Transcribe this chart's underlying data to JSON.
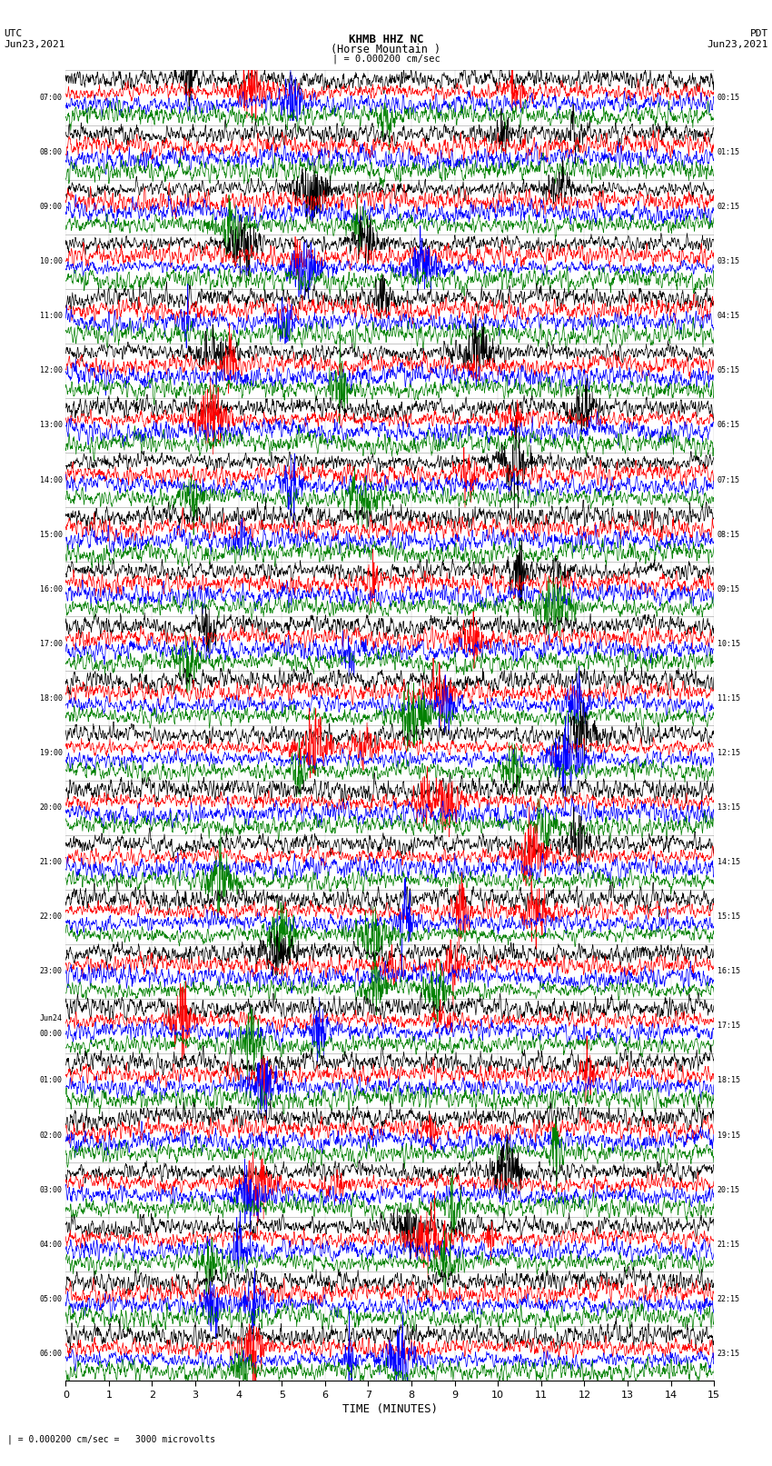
{
  "title_line1": "KHMB HHZ NC",
  "title_line2": "(Horse Mountain )",
  "title_scale": "| = 0.000200 cm/sec",
  "label_left_top": "UTC",
  "label_left_date": "Jun23,2021",
  "label_right_top": "PDT",
  "label_right_date": "Jun23,2021",
  "xlabel": "TIME (MINUTES)",
  "bottom_note": "| = 0.000200 cm/sec =   3000 microvolts",
  "left_times": [
    "07:00",
    "08:00",
    "09:00",
    "10:00",
    "11:00",
    "12:00",
    "13:00",
    "14:00",
    "15:00",
    "16:00",
    "17:00",
    "18:00",
    "19:00",
    "20:00",
    "21:00",
    "22:00",
    "23:00",
    "Jun24\n00:00",
    "01:00",
    "02:00",
    "03:00",
    "04:00",
    "05:00",
    "06:00"
  ],
  "right_times": [
    "00:15",
    "01:15",
    "02:15",
    "03:15",
    "04:15",
    "05:15",
    "06:15",
    "07:15",
    "08:15",
    "09:15",
    "10:15",
    "11:15",
    "12:15",
    "13:15",
    "14:15",
    "15:15",
    "16:15",
    "17:15",
    "18:15",
    "19:15",
    "20:15",
    "21:15",
    "22:15",
    "23:15"
  ],
  "num_rows": 24,
  "traces_per_row": 4,
  "colors": [
    "black",
    "red",
    "blue",
    "green"
  ],
  "bg_color": "white",
  "xlim": [
    0,
    15
  ],
  "xticks": [
    0,
    1,
    2,
    3,
    4,
    5,
    6,
    7,
    8,
    9,
    10,
    11,
    12,
    13,
    14,
    15
  ],
  "fig_width": 8.5,
  "fig_height": 16.13,
  "dpi": 100
}
